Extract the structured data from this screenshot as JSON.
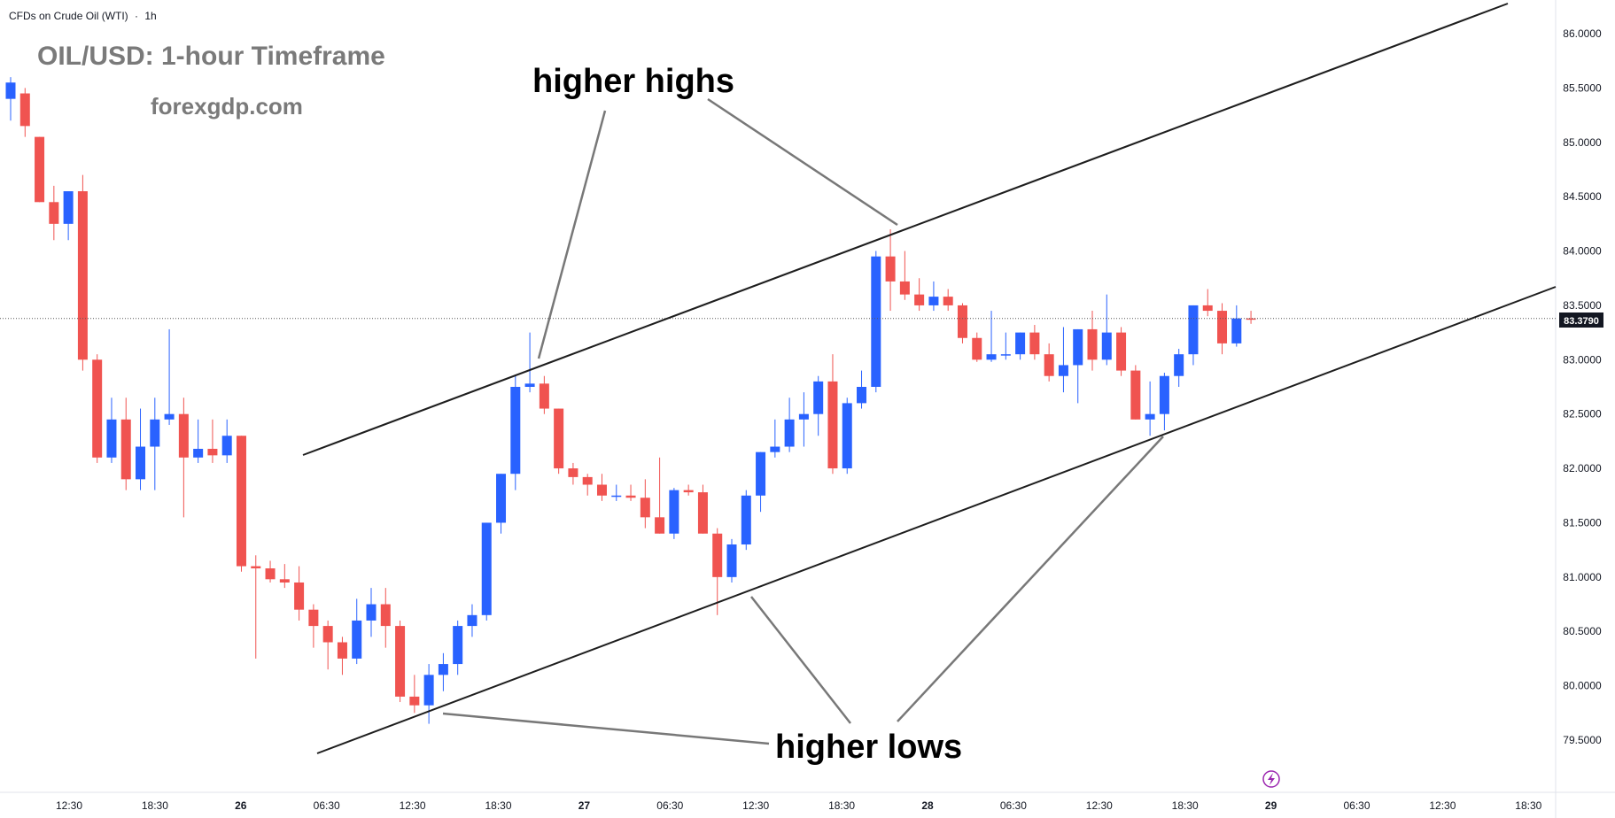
{
  "header": {
    "instrument": "CFDs on Crude Oil (WTI)",
    "separator": "·",
    "interval": "1h"
  },
  "watermark": {
    "title": "OIL/USD: 1-hour Timeframe",
    "site": "forexgdp.com"
  },
  "annotations": {
    "highs": "higher highs",
    "lows": "higher lows"
  },
  "price_axis": {
    "current_price": "83.3790",
    "ticks": [
      "86.0000",
      "85.5000",
      "85.0000",
      "84.5000",
      "84.0000",
      "83.5000",
      "83.0000",
      "82.5000",
      "82.0000",
      "81.5000",
      "81.0000",
      "80.5000",
      "80.0000",
      "79.5000"
    ]
  },
  "time_axis": {
    "ticks": [
      "12:30",
      "18:30",
      "26",
      "06:30",
      "12:30",
      "18:30",
      "27",
      "06:30",
      "12:30",
      "18:30",
      "28",
      "06:30",
      "12:30",
      "18:30",
      "29",
      "06:30",
      "12:30",
      "18:30"
    ]
  },
  "colors": {
    "bull": "#2962ff",
    "bear": "#f05350",
    "trendline": "#1e1e1e",
    "pointer": "#787878",
    "icon": "#9c27b0"
  },
  "icons": {
    "bolt": "lightning-icon"
  },
  "chart_data": {
    "type": "candlestick",
    "title": "OIL/USD: 1-hour Timeframe",
    "y_range": [
      79.3,
      86.3
    ],
    "price_line": 83.379,
    "candles": [
      {
        "o": 85.4,
        "h": 85.6,
        "l": 85.2,
        "c": 85.55
      },
      {
        "o": 85.45,
        "h": 85.5,
        "l": 85.05,
        "c": 85.15
      },
      {
        "o": 85.05,
        "h": 85.05,
        "l": 84.45,
        "c": 84.45
      },
      {
        "o": 84.45,
        "h": 84.6,
        "l": 84.1,
        "c": 84.25
      },
      {
        "o": 84.25,
        "h": 84.55,
        "l": 84.1,
        "c": 84.55
      },
      {
        "o": 84.55,
        "h": 84.7,
        "l": 82.9,
        "c": 83.0
      },
      {
        "o": 83.0,
        "h": 83.05,
        "l": 82.05,
        "c": 82.1
      },
      {
        "o": 82.1,
        "h": 82.65,
        "l": 82.05,
        "c": 82.45
      },
      {
        "o": 82.45,
        "h": 82.65,
        "l": 81.8,
        "c": 81.9
      },
      {
        "o": 81.9,
        "h": 82.55,
        "l": 81.8,
        "c": 82.2
      },
      {
        "o": 82.2,
        "h": 82.65,
        "l": 81.8,
        "c": 82.45
      },
      {
        "o": 82.45,
        "h": 83.28,
        "l": 82.4,
        "c": 82.5
      },
      {
        "o": 82.5,
        "h": 82.65,
        "l": 81.55,
        "c": 82.1
      },
      {
        "o": 82.1,
        "h": 82.45,
        "l": 82.05,
        "c": 82.18
      },
      {
        "o": 82.18,
        "h": 82.45,
        "l": 82.05,
        "c": 82.12
      },
      {
        "o": 82.12,
        "h": 82.45,
        "l": 82.05,
        "c": 82.3
      },
      {
        "o": 82.3,
        "h": 82.3,
        "l": 81.05,
        "c": 81.1
      },
      {
        "o": 81.1,
        "h": 81.2,
        "l": 80.25,
        "c": 81.08
      },
      {
        "o": 81.08,
        "h": 81.15,
        "l": 80.95,
        "c": 80.98
      },
      {
        "o": 80.98,
        "h": 81.12,
        "l": 80.9,
        "c": 80.95
      },
      {
        "o": 80.95,
        "h": 81.1,
        "l": 80.6,
        "c": 80.7
      },
      {
        "o": 80.7,
        "h": 80.75,
        "l": 80.35,
        "c": 80.55
      },
      {
        "o": 80.55,
        "h": 80.6,
        "l": 80.15,
        "c": 80.4
      },
      {
        "o": 80.4,
        "h": 80.45,
        "l": 80.1,
        "c": 80.25
      },
      {
        "o": 80.25,
        "h": 80.8,
        "l": 80.2,
        "c": 80.6
      },
      {
        "o": 80.6,
        "h": 80.9,
        "l": 80.45,
        "c": 80.75
      },
      {
        "o": 80.75,
        "h": 80.9,
        "l": 80.35,
        "c": 80.55
      },
      {
        "o": 80.55,
        "h": 80.6,
        "l": 79.85,
        "c": 79.9
      },
      {
        "o": 79.9,
        "h": 80.1,
        "l": 79.75,
        "c": 79.82
      },
      {
        "o": 79.82,
        "h": 80.2,
        "l": 79.65,
        "c": 80.1
      },
      {
        "o": 80.1,
        "h": 80.3,
        "l": 79.95,
        "c": 80.2
      },
      {
        "o": 80.2,
        "h": 80.6,
        "l": 80.1,
        "c": 80.55
      },
      {
        "o": 80.55,
        "h": 80.75,
        "l": 80.45,
        "c": 80.65
      },
      {
        "o": 80.65,
        "h": 81.5,
        "l": 80.6,
        "c": 81.5
      },
      {
        "o": 81.5,
        "h": 81.95,
        "l": 81.4,
        "c": 81.95
      },
      {
        "o": 81.95,
        "h": 82.85,
        "l": 81.8,
        "c": 82.75
      },
      {
        "o": 82.75,
        "h": 83.25,
        "l": 82.7,
        "c": 82.78
      },
      {
        "o": 82.78,
        "h": 82.85,
        "l": 82.5,
        "c": 82.55
      },
      {
        "o": 82.55,
        "h": 82.55,
        "l": 81.95,
        "c": 82.0
      },
      {
        "o": 82.0,
        "h": 82.05,
        "l": 81.85,
        "c": 81.92
      },
      {
        "o": 81.92,
        "h": 81.95,
        "l": 81.75,
        "c": 81.85
      },
      {
        "o": 81.85,
        "h": 81.95,
        "l": 81.7,
        "c": 81.75
      },
      {
        "o": 81.75,
        "h": 81.85,
        "l": 81.7,
        "c": 81.75
      },
      {
        "o": 81.75,
        "h": 81.85,
        "l": 81.7,
        "c": 81.73
      },
      {
        "o": 81.73,
        "h": 81.9,
        "l": 81.45,
        "c": 81.55
      },
      {
        "o": 81.55,
        "h": 82.1,
        "l": 81.4,
        "c": 81.4
      },
      {
        "o": 81.4,
        "h": 81.82,
        "l": 81.35,
        "c": 81.8
      },
      {
        "o": 81.8,
        "h": 81.85,
        "l": 81.75,
        "c": 81.78
      },
      {
        "o": 81.78,
        "h": 81.85,
        "l": 81.4,
        "c": 81.4
      },
      {
        "o": 81.4,
        "h": 81.45,
        "l": 80.65,
        "c": 81.0
      },
      {
        "o": 81.0,
        "h": 81.35,
        "l": 80.95,
        "c": 81.3
      },
      {
        "o": 81.3,
        "h": 81.8,
        "l": 81.25,
        "c": 81.75
      },
      {
        "o": 81.75,
        "h": 82.15,
        "l": 81.6,
        "c": 82.15
      },
      {
        "o": 82.15,
        "h": 82.45,
        "l": 82.1,
        "c": 82.2
      },
      {
        "o": 82.2,
        "h": 82.65,
        "l": 82.15,
        "c": 82.45
      },
      {
        "o": 82.45,
        "h": 82.7,
        "l": 82.2,
        "c": 82.5
      },
      {
        "o": 82.5,
        "h": 82.85,
        "l": 82.3,
        "c": 82.8
      },
      {
        "o": 82.8,
        "h": 83.05,
        "l": 81.95,
        "c": 82.0
      },
      {
        "o": 82.0,
        "h": 82.65,
        "l": 81.95,
        "c": 82.6
      },
      {
        "o": 82.6,
        "h": 82.9,
        "l": 82.55,
        "c": 82.75
      },
      {
        "o": 82.75,
        "h": 84.0,
        "l": 82.7,
        "c": 83.95
      },
      {
        "o": 83.95,
        "h": 84.2,
        "l": 83.45,
        "c": 83.72
      },
      {
        "o": 83.72,
        "h": 84.0,
        "l": 83.55,
        "c": 83.6
      },
      {
        "o": 83.6,
        "h": 83.75,
        "l": 83.45,
        "c": 83.5
      },
      {
        "o": 83.5,
        "h": 83.72,
        "l": 83.45,
        "c": 83.58
      },
      {
        "o": 83.58,
        "h": 83.65,
        "l": 83.45,
        "c": 83.5
      },
      {
        "o": 83.5,
        "h": 83.52,
        "l": 83.15,
        "c": 83.2
      },
      {
        "o": 83.2,
        "h": 83.25,
        "l": 82.98,
        "c": 83.0
      },
      {
        "o": 83.0,
        "h": 83.45,
        "l": 82.98,
        "c": 83.05
      },
      {
        "o": 83.05,
        "h": 83.25,
        "l": 83.0,
        "c": 83.05
      },
      {
        "o": 83.05,
        "h": 83.25,
        "l": 83.0,
        "c": 83.25
      },
      {
        "o": 83.25,
        "h": 83.32,
        "l": 83.0,
        "c": 83.05
      },
      {
        "o": 83.05,
        "h": 83.15,
        "l": 82.8,
        "c": 82.85
      },
      {
        "o": 82.85,
        "h": 83.3,
        "l": 82.7,
        "c": 82.95
      },
      {
        "o": 82.95,
        "h": 83.28,
        "l": 82.6,
        "c": 83.28
      },
      {
        "o": 83.28,
        "h": 83.45,
        "l": 82.9,
        "c": 83.0
      },
      {
        "o": 83.0,
        "h": 83.6,
        "l": 82.95,
        "c": 83.25
      },
      {
        "o": 83.25,
        "h": 83.3,
        "l": 82.85,
        "c": 82.9
      },
      {
        "o": 82.9,
        "h": 82.95,
        "l": 82.45,
        "c": 82.45
      },
      {
        "o": 82.45,
        "h": 82.8,
        "l": 82.3,
        "c": 82.5
      },
      {
        "o": 82.5,
        "h": 82.88,
        "l": 82.35,
        "c": 82.85
      },
      {
        "o": 82.85,
        "h": 83.1,
        "l": 82.75,
        "c": 83.05
      },
      {
        "o": 83.05,
        "h": 83.5,
        "l": 82.95,
        "c": 83.5
      },
      {
        "o": 83.5,
        "h": 83.65,
        "l": 83.4,
        "c": 83.45
      },
      {
        "o": 83.45,
        "h": 83.52,
        "l": 83.05,
        "c": 83.15
      },
      {
        "o": 83.15,
        "h": 83.5,
        "l": 83.12,
        "c": 83.38
      },
      {
        "o": 83.38,
        "h": 83.45,
        "l": 83.33,
        "c": 83.379
      }
    ]
  }
}
